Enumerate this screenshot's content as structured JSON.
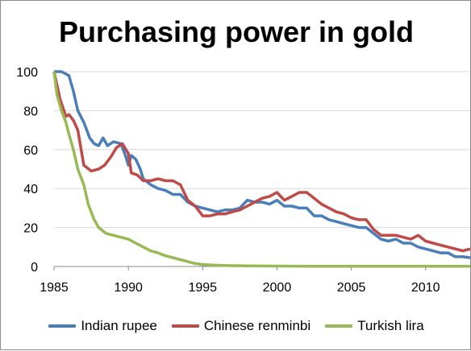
{
  "chart_data": {
    "type": "line",
    "title": "Purchasing power in gold",
    "xlabel": "",
    "ylabel": "",
    "xlim": [
      1985,
      2013
    ],
    "ylim": [
      0,
      100
    ],
    "x_ticks": [
      1985,
      1990,
      1995,
      2000,
      2005,
      2010
    ],
    "y_ticks": [
      0,
      20,
      40,
      60,
      80,
      100
    ],
    "grid": "horizontal",
    "legend": "bottom",
    "series": [
      {
        "name": "Indian rupee",
        "color": "#4a7ebb",
        "x": [
          1985,
          1985.5,
          1986,
          1986.3,
          1986.6,
          1987,
          1987.4,
          1987.7,
          1988,
          1988.3,
          1988.6,
          1989,
          1989.5,
          1989.8,
          1990,
          1990.2,
          1990.5,
          1990.8,
          1991,
          1991.5,
          1992,
          1992.5,
          1993,
          1993.5,
          1994,
          1994.5,
          1995,
          1995.5,
          1996,
          1996.5,
          1997,
          1997.5,
          1998,
          1998.5,
          1999,
          1999.5,
          2000,
          2000.5,
          2001,
          2001.5,
          2002,
          2002.5,
          2003,
          2003.5,
          2004,
          2004.5,
          2005,
          2005.5,
          2006,
          2006.5,
          2007,
          2007.5,
          2008,
          2008.5,
          2009,
          2009.5,
          2010,
          2010.5,
          2011,
          2011.5,
          2012,
          2012.5,
          2013
        ],
        "values": [
          100,
          100,
          98,
          90,
          80,
          74,
          66,
          63,
          62,
          66,
          62,
          64,
          63,
          57,
          52,
          57,
          55,
          50,
          45,
          42,
          40,
          39,
          37,
          37,
          33,
          31,
          30,
          29,
          28,
          29,
          29,
          30,
          34,
          33,
          33,
          32,
          34,
          31,
          31,
          30,
          30,
          26,
          26,
          24,
          23,
          22,
          21,
          20,
          20,
          17,
          14,
          13,
          14,
          12,
          12,
          10,
          9,
          8,
          7,
          7,
          5,
          5,
          4.5
        ]
      },
      {
        "name": "Chinese renminbi",
        "color": "#be4b48",
        "x": [
          1985,
          1985.4,
          1985.8,
          1986,
          1986.3,
          1986.6,
          1987,
          1987.5,
          1988,
          1988.4,
          1988.8,
          1989.2,
          1989.6,
          1990,
          1990.2,
          1990.6,
          1991,
          1991.5,
          1992,
          1992.5,
          1993,
          1993.5,
          1994,
          1994.5,
          1995,
          1995.5,
          1996,
          1996.5,
          1997,
          1997.5,
          1998,
          1998.5,
          1999,
          1999.5,
          2000,
          2000.5,
          2001,
          2001.5,
          2002,
          2002.5,
          2003,
          2003.5,
          2004,
          2004.5,
          2005,
          2005.5,
          2006,
          2006.5,
          2007,
          2007.5,
          2008,
          2008.5,
          2009,
          2009.5,
          2010,
          2010.5,
          2011,
          2011.5,
          2012,
          2012.5,
          2013
        ],
        "values": [
          100,
          86,
          77,
          78,
          75,
          70,
          52,
          49,
          50,
          52,
          56,
          61,
          63,
          58,
          48,
          47,
          44,
          44,
          45,
          44,
          44,
          42,
          34,
          31,
          26,
          26,
          27,
          27,
          28,
          29,
          31,
          33,
          35,
          36,
          38,
          34,
          36,
          38,
          38,
          35,
          32,
          30,
          28,
          27,
          25,
          24,
          24,
          19,
          16,
          16,
          16,
          15,
          14,
          16,
          13,
          12,
          11,
          10,
          9,
          8,
          9
        ]
      },
      {
        "name": "Turkish lira",
        "color": "#98b954",
        "x": [
          1985,
          1985.2,
          1985.5,
          1985.8,
          1986,
          1986.3,
          1986.6,
          1987,
          1987.3,
          1987.7,
          1988,
          1988.5,
          1989,
          1989.5,
          1990,
          1990.5,
          1991,
          1991.5,
          1992,
          1992.5,
          1993,
          1993.5,
          1994,
          1994.5,
          1995,
          1996,
          1997,
          1998,
          2000,
          2002,
          2005,
          2008,
          2010,
          2013
        ],
        "values": [
          100,
          88,
          80,
          74,
          68,
          60,
          50,
          42,
          32,
          24,
          20,
          17,
          16,
          15,
          14,
          12,
          10,
          8,
          7,
          5.5,
          4.5,
          3.5,
          2.5,
          1.5,
          1,
          0.6,
          0.4,
          0.3,
          0.2,
          0.1,
          0.1,
          0.1,
          0.1,
          0.1
        ]
      }
    ]
  }
}
